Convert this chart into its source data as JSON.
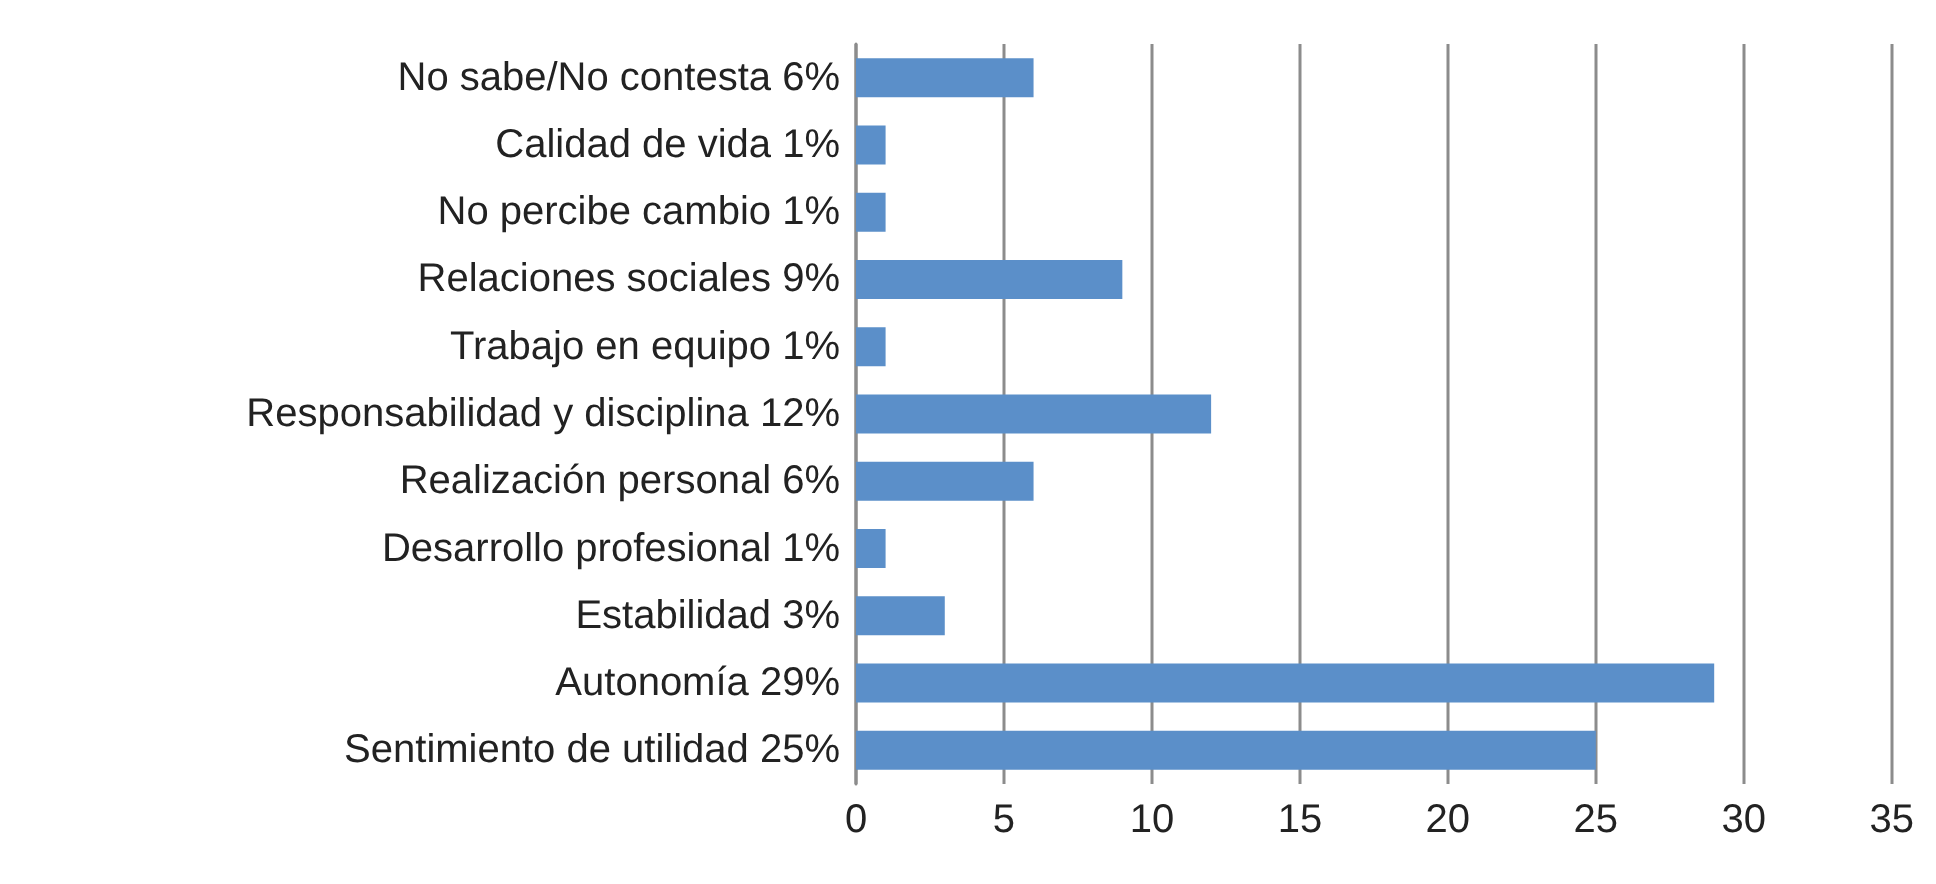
{
  "chart_data": {
    "type": "bar",
    "orientation": "horizontal",
    "categories": [
      "No sabe/No contesta 6%",
      "Calidad de vida 1%",
      "No percibe cambio 1%",
      "Relaciones sociales 9%",
      "Trabajo en equipo 1%",
      "Responsabilidad y disciplina 12%",
      "Realización personal 6%",
      "Desarrollo profesional 1%",
      "Estabilidad 3%",
      "Autonomía 29%",
      "Sentimiento de utilidad 25%"
    ],
    "values": [
      6,
      1,
      1,
      9,
      1,
      12,
      6,
      1,
      3,
      29,
      25
    ],
    "color": "#5b8fc9",
    "xlim": [
      0,
      35
    ],
    "xticks": [
      0,
      5,
      10,
      15,
      20,
      25,
      30,
      35
    ],
    "grid": "x"
  }
}
